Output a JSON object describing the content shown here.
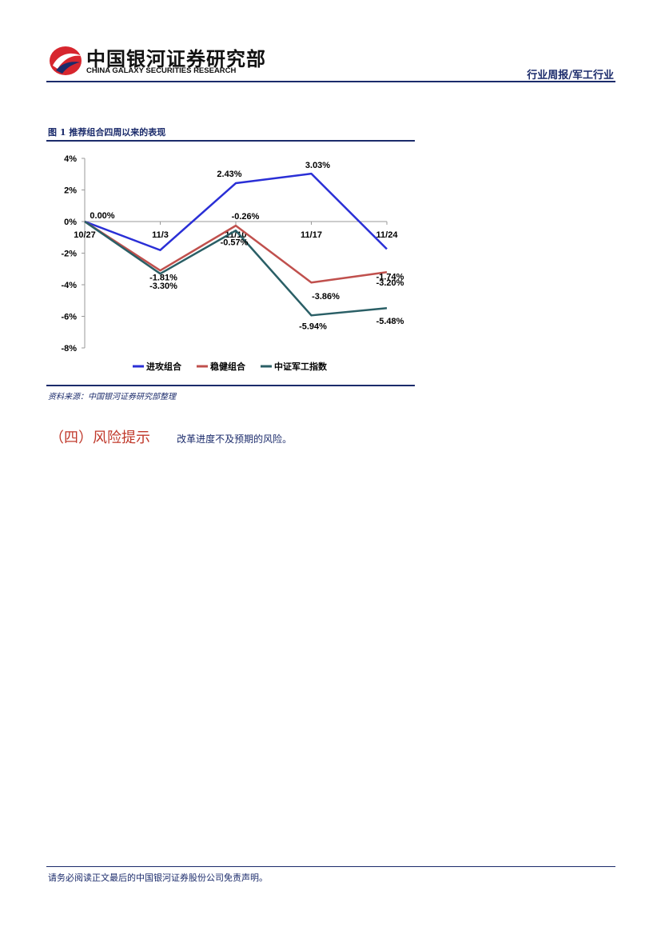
{
  "header": {
    "logo_cn": "中国银河证券研究部",
    "logo_en": "CHINA GALAXY SECURITIES RESEARCH",
    "report_type": "行业周报/军工行业"
  },
  "figure": {
    "title": "图 1 推荐组合四周以来的表现",
    "source": "资料来源：中国银河证券研究部整理"
  },
  "chart_data": {
    "type": "line",
    "categories": [
      "10/27",
      "11/3",
      "11/10",
      "11/17",
      "11/24"
    ],
    "yticks": [
      "4%",
      "2%",
      "0%",
      "-2%",
      "-4%",
      "-6%",
      "-8%"
    ],
    "ylim": [
      -8,
      4
    ],
    "grid": false,
    "legend_position": "bottom",
    "series": [
      {
        "name": "进攻组合",
        "color": "#2a2fd6",
        "values": [
          0.0,
          -1.81,
          2.43,
          3.03,
          -1.74
        ],
        "labels": [
          "0.00%",
          "-1.81%",
          "2.43%",
          "3.03%",
          "-1.74%"
        ]
      },
      {
        "name": "稳健组合",
        "color": "#c0504d",
        "values": [
          0.0,
          -3.1,
          -0.26,
          -3.86,
          -3.2
        ],
        "labels": [
          "",
          "",
          "-0.26%",
          "-3.86%",
          "-3.20%"
        ]
      },
      {
        "name": "中证军工指数",
        "color": "#2a5f66",
        "values": [
          0.0,
          -3.3,
          -0.57,
          -5.94,
          -5.48
        ],
        "labels": [
          "",
          "-3.30%",
          "-0.57%",
          "-5.94%",
          "-5.48%"
        ]
      }
    ]
  },
  "risk": {
    "title": "（四）风险提示",
    "text": "改革进度不及预期的风险。"
  },
  "footer": {
    "text": "请务必阅读正文最后的中国银河证券股份公司免责声明。"
  }
}
